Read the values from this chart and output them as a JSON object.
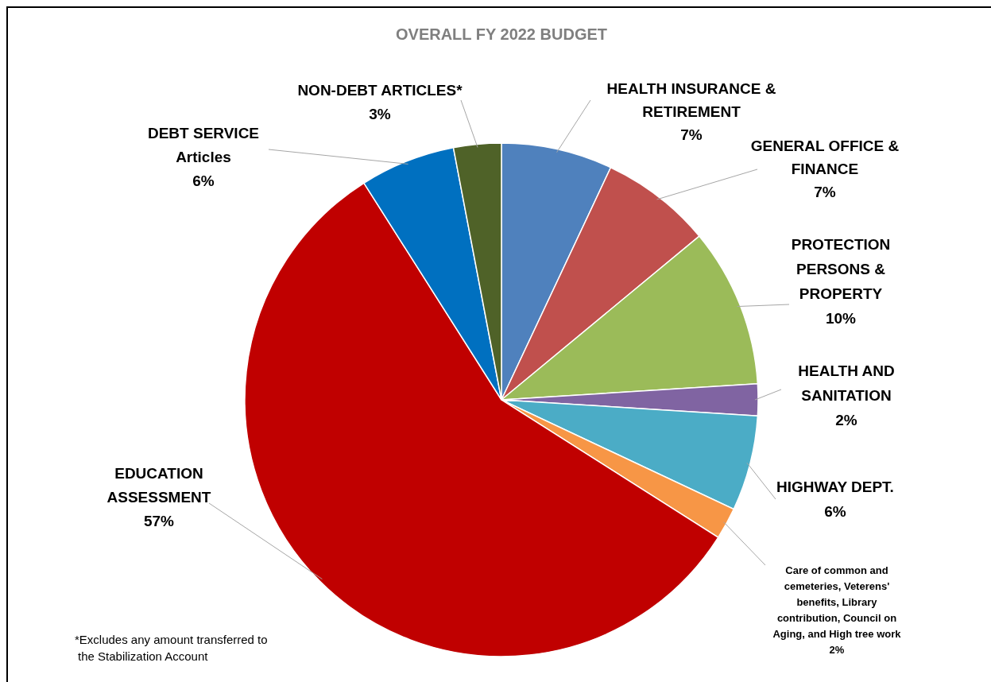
{
  "chart_data": {
    "type": "pie",
    "title": "OVERALL FY 2022 BUDGET",
    "categories": [
      "HEALTH INSURANCE & RETIREMENT",
      "GENERAL OFFICE & FINANCE",
      "PROTECTION PERSONS & PROPERTY",
      "HEALTH AND SANITATION",
      "HIGHWAY DEPT.",
      "Care of common and cemeteries, Veterens' benefits, Library contribution, Council on Aging, and High tree work",
      "EDUCATION ASSESSMENT",
      "DEBT SERVICE Articles",
      "NON-DEBT ARTICLES*"
    ],
    "values": [
      7,
      7,
      10,
      2,
      6,
      2,
      57,
      6,
      3
    ],
    "value_labels": [
      "7%",
      "7%",
      "10%",
      "2%",
      "6%",
      "2%",
      "57%",
      "6%",
      "3%"
    ],
    "colors": [
      "#4f81bd",
      "#c0504d",
      "#9bbb59",
      "#8064a2",
      "#4bacc6",
      "#f79646",
      "#c00000",
      "#0070c0",
      "#4f6228"
    ],
    "annotations": [
      "*Excludes any amount transferred to the Stabilization Account"
    ]
  }
}
